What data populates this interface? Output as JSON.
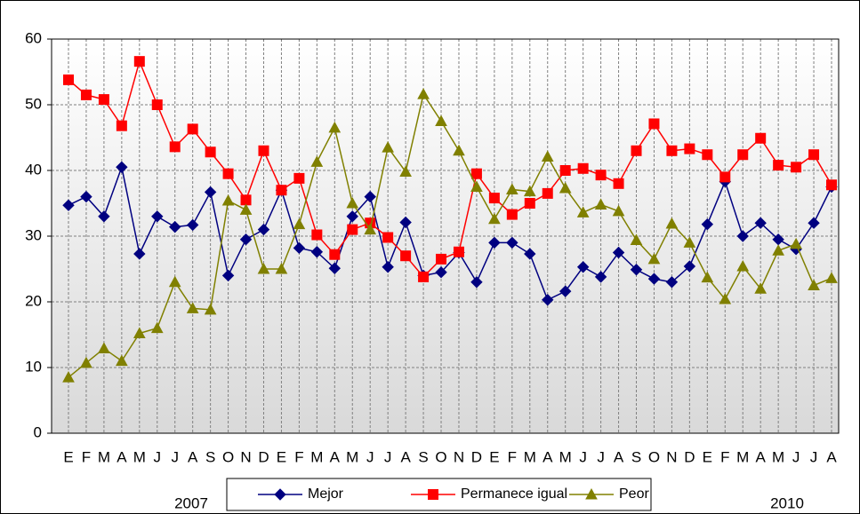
{
  "chart_data": {
    "type": "line",
    "categories": [
      "E",
      "F",
      "M",
      "A",
      "M",
      "J",
      "J",
      "A",
      "S",
      "O",
      "N",
      "D",
      "E",
      "F",
      "M",
      "A",
      "M",
      "J",
      "J",
      "A",
      "S",
      "O",
      "N",
      "D",
      "E",
      "F",
      "M",
      "A",
      "M",
      "J",
      "J",
      "A",
      "S",
      "O",
      "N",
      "D",
      "E",
      "F",
      "M",
      "A",
      "M",
      "J",
      "J",
      "A"
    ],
    "year_labels": [
      "2007",
      "2010"
    ],
    "series": [
      {
        "name": "Mejor",
        "color": "#000080",
        "marker": "diamond",
        "values": [
          34.7,
          36,
          33,
          40.5,
          27.3,
          33,
          31.4,
          31.7,
          36.7,
          24,
          29.5,
          31,
          37,
          28.2,
          27.6,
          25.1,
          33,
          36,
          25.3,
          32.1,
          24,
          24.5,
          27.5,
          23,
          29,
          29,
          27.3,
          20.3,
          21.6,
          25.3,
          23.8,
          27.5,
          24.9,
          23.5,
          23,
          25.4,
          31.8,
          38.3,
          30,
          32,
          29.5,
          28,
          32,
          37.5
        ]
      },
      {
        "name": "Permanece igual",
        "color": "#ff0000",
        "marker": "square",
        "values": [
          53.8,
          51.5,
          50.8,
          46.8,
          56.6,
          50,
          43.6,
          46.3,
          42.8,
          39.5,
          35.5,
          43,
          37,
          38.8,
          30.2,
          27.2,
          31,
          32,
          29.8,
          27,
          23.8,
          26.5,
          27.6,
          39.5,
          35.8,
          33.3,
          35,
          36.5,
          40,
          40.3,
          39.3,
          38,
          43,
          47.1,
          43,
          43.3,
          42.4,
          39,
          42.4,
          44.9,
          40.8,
          40.5,
          42.4,
          37.8
        ]
      },
      {
        "name": "Peor",
        "color": "#808000",
        "marker": "triangle",
        "values": [
          8.5,
          10.7,
          12.9,
          11,
          15.2,
          16,
          23,
          19,
          18.8,
          35.4,
          34,
          25,
          25,
          31.8,
          41.3,
          46.5,
          35,
          31,
          43.5,
          39.8,
          51.6,
          47.5,
          43,
          37.5,
          32.6,
          37.1,
          36.8,
          42.1,
          37.3,
          33.6,
          34.8,
          33.8,
          29.4,
          26.5,
          31.9,
          29,
          23.7,
          20.4,
          25.4,
          22,
          27.8,
          28.8,
          22.5,
          23.6
        ]
      }
    ],
    "ylim": [
      0,
      60
    ],
    "yticks": [
      0,
      10,
      20,
      30,
      40,
      50,
      60
    ],
    "grid": true
  }
}
